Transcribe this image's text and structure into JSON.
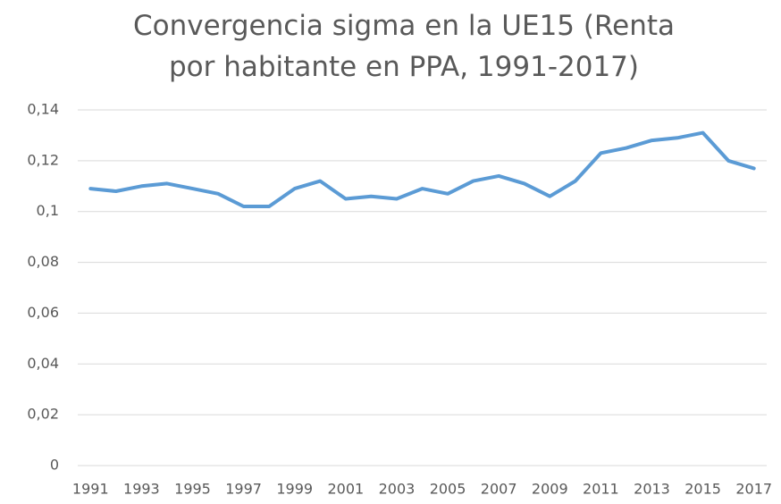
{
  "chart_data": {
    "type": "line",
    "title": "Convergencia sigma en la UE15 (Renta por habitante en PPA, 1991-2017)",
    "categories": [
      "1991",
      null,
      "1993",
      null,
      "1995",
      null,
      "1997",
      null,
      "1999",
      null,
      "2001",
      null,
      "2003",
      null,
      "2005",
      null,
      "2007",
      null,
      "2009",
      null,
      "2011",
      null,
      "2013",
      null,
      "2015",
      null,
      "2017"
    ],
    "series": [
      {
        "name": "Convergencia sigma",
        "color": "#5b9bd5",
        "values": [
          0.109,
          0.108,
          0.11,
          0.111,
          0.109,
          0.107,
          0.102,
          0.102,
          0.109,
          0.112,
          0.105,
          0.106,
          0.105,
          0.109,
          0.107,
          0.112,
          0.114,
          0.111,
          0.106,
          0.112,
          0.123,
          0.125,
          0.128,
          0.129,
          0.131,
          0.12,
          0.117
        ]
      }
    ],
    "ylim": [
      0,
      0.14
    ],
    "yticks": [
      0,
      {
        "value": 0.02,
        "label": "0,02"
      },
      {
        "value": 0.04,
        "label": "0,04"
      },
      {
        "value": 0.06,
        "label": "0,06"
      },
      {
        "value": 0.08,
        "label": "0,08"
      },
      {
        "value": 0.1,
        "label": "0,1"
      },
      {
        "value": 0.12,
        "label": "0,12"
      },
      {
        "value": 0.14,
        "label": "0,14"
      }
    ],
    "grid": true
  }
}
